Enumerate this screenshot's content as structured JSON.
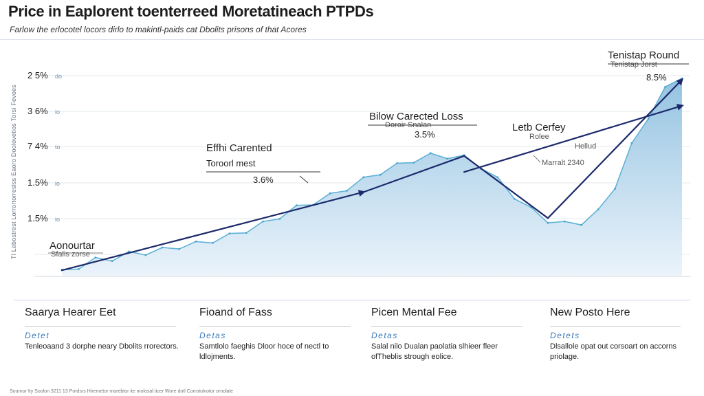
{
  "header": {
    "title": "Price in Eaplorent toenterreed Moretatineach PTPDs",
    "subtitle": "Farlow the erlocotel locors dirlo to makintl-paids cat Dbolits prisons of that Acores"
  },
  "chart_data": {
    "type": "line",
    "title": "Price in Eaplorent toenterreed Moretatineach PTPDs",
    "ylabel": "Tl Lebostrest Lorrortorreslss Eaoro Doolovetios Torsi Fevoes",
    "y_tick_labels": [
      "2 5%",
      "3 6%",
      "7 4%",
      "1.5%",
      "1.5%"
    ],
    "y_tick_sublabels": [
      "do",
      "io",
      "to",
      "io",
      "io"
    ],
    "series": [
      {
        "values": [
          0.02,
          0.05,
          0.08,
          0.09,
          0.11,
          0.12,
          0.13,
          0.15,
          0.16,
          0.18,
          0.2,
          0.23,
          0.26,
          0.3,
          0.34,
          0.37,
          0.4,
          0.44,
          0.48,
          0.52,
          0.55,
          0.58,
          0.6,
          0.6,
          0.59,
          0.55,
          0.48,
          0.4,
          0.33,
          0.28,
          0.26,
          0.27,
          0.32,
          0.45,
          0.65,
          0.8,
          0.93,
          1.0
        ]
      }
    ],
    "trend_segments": [
      {
        "from_index": 0,
        "to_index": 18,
        "start_value": 0.03,
        "end_value": 0.42
      },
      {
        "from_index": 18,
        "to_index": 24,
        "start_value": 0.42,
        "end_value": 0.6
      },
      {
        "from_index": 24,
        "to_index": 29,
        "start_value": 0.6,
        "end_value": 0.29
      },
      {
        "from_index": 24,
        "to_index": 37,
        "start_value": 0.52,
        "end_value": 0.85
      },
      {
        "from_index": 29,
        "to_index": 37,
        "start_value": 0.29,
        "end_value": 0.98
      }
    ],
    "annotations": [
      {
        "title": "Aonourtar",
        "note": "Sfalis zorse"
      },
      {
        "title": "Effhi Carented",
        "subtitle": "Toroorl mest",
        "value": "3.6%"
      },
      {
        "title": "Bilow Carected Loss",
        "note": "Doroir Snalan",
        "value": "3.5%"
      },
      {
        "title": "Letb Cerfey",
        "note": "Rolee",
        "value": "Hellud",
        "value2": "Marralt 2340"
      },
      {
        "title": "Tenistap Round",
        "note": "Tenistap Jorst",
        "value": "8.5%"
      }
    ],
    "grid": true,
    "legend": "none"
  },
  "cards": [
    {
      "title": "Saarya Hearer Eet",
      "link": "Detet",
      "text": "Tenleoaand 3 dorphe neary Dbolits rrorectors."
    },
    {
      "title": "Fioand of Fass",
      "link": "Detas",
      "text": "Samtlolo faeghis Dloor hoce of nectl to ldlojments."
    },
    {
      "title": "Picen Mental Fee",
      "link": "Detas",
      "text": "Salal nilo Dualan paolatia slhieer fleer ofTheblis strough eolice."
    },
    {
      "title": "New Posto Here",
      "link": "Detets",
      "text": "Dlsallole opat out corsoart on accorns priolage."
    }
  ],
  "footer": "Sournor Ity Soolon  3211 13 Pordsrs  Hiremetor morebtor ite molosal ticer Wore dotl Corrotulvotor ornolale"
}
